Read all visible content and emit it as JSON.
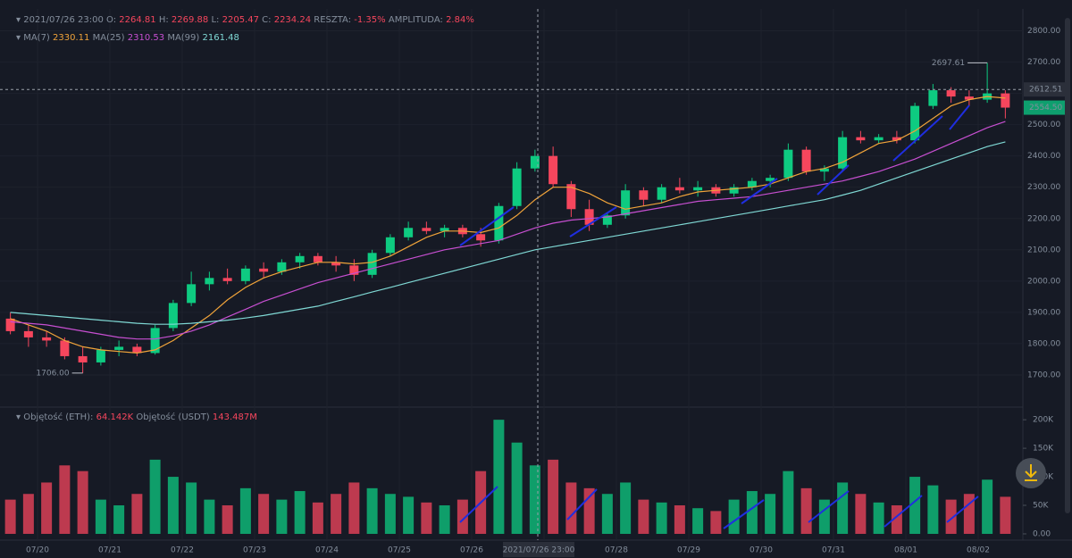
{
  "chart_data": {
    "type": "candlestick",
    "header": {
      "time": "2021/07/26 23:00",
      "items": [
        {
          "label": "O:",
          "value": "2264.81"
        },
        {
          "label": "H:",
          "value": "2269.88"
        },
        {
          "label": "L:",
          "value": "2205.47"
        },
        {
          "label": "C:",
          "value": "2234.24"
        },
        {
          "label": "RESZTA:",
          "value": "-1.35%"
        },
        {
          "label": "AMPLITUDA:",
          "value": "2.84%"
        }
      ]
    },
    "volume_header": [
      {
        "label": "Objętość (ETH):",
        "value": "64.142K"
      },
      {
        "label": "Objętość (USDT)",
        "value": "143.487M"
      }
    ],
    "categories": [
      null,
      null,
      "07/20",
      null,
      null,
      null,
      "07/21",
      null,
      null,
      null,
      "07/22",
      null,
      null,
      null,
      "07/23",
      null,
      null,
      null,
      "07/24",
      null,
      null,
      null,
      "07/25",
      null,
      null,
      null,
      "07/26",
      null,
      null,
      null,
      "07/27",
      null,
      null,
      null,
      "07/28",
      null,
      null,
      null,
      "07/29",
      null,
      null,
      null,
      "07/30",
      null,
      null,
      null,
      "07/31",
      null,
      null,
      null,
      "08/01",
      null,
      null,
      null,
      "08/02",
      null
    ],
    "open": [
      1880,
      1840,
      1820,
      1810,
      1760,
      1740,
      1780,
      1790,
      1770,
      1850,
      1930,
      1990,
      2010,
      2000,
      2040,
      2030,
      2060,
      2080,
      2060,
      2050,
      2020,
      2090,
      2140,
      2170,
      2160,
      2170,
      2150,
      2130,
      2240,
      2360,
      2400,
      2310,
      2230,
      2180,
      2210,
      2290,
      2260,
      2300,
      2290,
      2300,
      2280,
      2300,
      2320,
      2330,
      2420,
      2350,
      2360,
      2460,
      2450,
      2460,
      2450,
      2560,
      2610,
      2590,
      2580,
      2600
    ],
    "high": [
      1900,
      1860,
      1840,
      1820,
      1790,
      1790,
      1810,
      1800,
      1860,
      1940,
      2030,
      2030,
      2040,
      2050,
      2060,
      2070,
      2090,
      2090,
      2080,
      2070,
      2100,
      2150,
      2190,
      2190,
      2180,
      2180,
      2170,
      2250,
      2380,
      2420,
      2430,
      2320,
      2260,
      2220,
      2310,
      2300,
      2310,
      2330,
      2320,
      2310,
      2310,
      2330,
      2340,
      2440,
      2430,
      2370,
      2480,
      2480,
      2470,
      2480,
      2570,
      2630,
      2620,
      2610,
      2697.61,
      2610
    ],
    "low": [
      1830,
      1790,
      1790,
      1750,
      1706,
      1730,
      1760,
      1760,
      1765,
      1840,
      1920,
      1970,
      1990,
      1990,
      2010,
      2020,
      2040,
      2050,
      2030,
      2000,
      2010,
      2080,
      2130,
      2150,
      2140,
      2140,
      2110,
      2120,
      2230,
      2350,
      2300,
      2205,
      2160,
      2170,
      2200,
      2240,
      2250,
      2280,
      2270,
      2270,
      2270,
      2290,
      2300,
      2320,
      2340,
      2320,
      2350,
      2440,
      2440,
      2440,
      2440,
      2550,
      2570,
      2560,
      2570,
      2520
    ],
    "close": [
      1840,
      1820,
      1810,
      1760,
      1740,
      1780,
      1790,
      1770,
      1850,
      1930,
      1990,
      2010,
      2000,
      2040,
      2030,
      2060,
      2080,
      2060,
      2050,
      2020,
      2090,
      2140,
      2170,
      2160,
      2170,
      2150,
      2130,
      2240,
      2360,
      2400,
      2310,
      2230,
      2180,
      2210,
      2290,
      2260,
      2300,
      2290,
      2300,
      2280,
      2300,
      2320,
      2330,
      2420,
      2350,
      2360,
      2460,
      2450,
      2460,
      2450,
      2560,
      2610,
      2590,
      2580,
      2600,
      2554.5
    ],
    "volume": [
      60000,
      70000,
      90000,
      120000,
      110000,
      60000,
      50000,
      70000,
      130000,
      100000,
      90000,
      60000,
      50000,
      80000,
      70000,
      60000,
      75000,
      55000,
      70000,
      90000,
      80000,
      70000,
      65000,
      55000,
      50000,
      60000,
      110000,
      200000,
      160000,
      120000,
      130000,
      90000,
      80000,
      70000,
      90000,
      60000,
      55000,
      50000,
      45000,
      40000,
      60000,
      75000,
      70000,
      110000,
      80000,
      60000,
      90000,
      70000,
      55000,
      50000,
      100000,
      85000,
      60000,
      70000,
      95000,
      65000
    ],
    "up_color": "#0ecb81",
    "down_color": "#f6465d",
    "series": [
      {
        "name": "MA(7)",
        "legend_value": "2330.11",
        "color": "#f0a33a",
        "values": [
          1880,
          1860,
          1840,
          1810,
          1790,
          1780,
          1775,
          1770,
          1780,
          1810,
          1850,
          1890,
          1940,
          1980,
          2010,
          2030,
          2045,
          2060,
          2060,
          2055,
          2060,
          2080,
          2110,
          2140,
          2160,
          2160,
          2155,
          2170,
          2210,
          2260,
          2300,
          2300,
          2280,
          2250,
          2230,
          2240,
          2250,
          2270,
          2285,
          2290,
          2295,
          2300,
          2310,
          2330,
          2350,
          2360,
          2380,
          2410,
          2440,
          2450,
          2480,
          2520,
          2560,
          2580,
          2590,
          2585
        ]
      },
      {
        "name": "MA(25)",
        "legend_value": "2310.53",
        "color": "#c74fd1",
        "values": [
          1870,
          1865,
          1860,
          1850,
          1840,
          1830,
          1820,
          1815,
          1815,
          1825,
          1840,
          1860,
          1885,
          1910,
          1935,
          1955,
          1975,
          1995,
          2010,
          2025,
          2040,
          2055,
          2070,
          2085,
          2100,
          2110,
          2120,
          2130,
          2150,
          2170,
          2185,
          2195,
          2200,
          2205,
          2215,
          2225,
          2235,
          2245,
          2255,
          2260,
          2265,
          2270,
          2280,
          2290,
          2300,
          2310,
          2320,
          2335,
          2350,
          2370,
          2390,
          2415,
          2440,
          2465,
          2490,
          2510
        ]
      },
      {
        "name": "MA(99)",
        "legend_value": "2161.48",
        "color": "#7fd8d4",
        "values": [
          1900,
          1895,
          1890,
          1885,
          1880,
          1875,
          1870,
          1865,
          1862,
          1862,
          1865,
          1870,
          1875,
          1882,
          1890,
          1900,
          1910,
          1920,
          1935,
          1950,
          1965,
          1980,
          1995,
          2010,
          2025,
          2040,
          2055,
          2070,
          2085,
          2100,
          2110,
          2120,
          2130,
          2140,
          2150,
          2160,
          2170,
          2180,
          2190,
          2200,
          2210,
          2220,
          2230,
          2240,
          2250,
          2260,
          2275,
          2290,
          2310,
          2330,
          2350,
          2370,
          2390,
          2410,
          2430,
          2445
        ]
      }
    ],
    "ylim": [
      1600,
      2870
    ],
    "yticks": [
      {
        "value": 1700,
        "label": "1700.00"
      },
      {
        "value": 1800,
        "label": "1800.00"
      },
      {
        "value": 1900,
        "label": "1900.00"
      },
      {
        "value": 2000,
        "label": "2000.00"
      },
      {
        "value": 2100,
        "label": "2100.00"
      },
      {
        "value": 2200,
        "label": "2200.00"
      },
      {
        "value": 2300,
        "label": "2300.00"
      },
      {
        "value": 2400,
        "label": "2400.00"
      },
      {
        "value": 2500,
        "label": "2500.00"
      },
      {
        "value": 2600,
        "label": "2600.00"
      },
      {
        "value": 2700,
        "label": "2700.00"
      },
      {
        "value": 2800,
        "label": "2800.00"
      }
    ],
    "y2lim": [
      -11000,
      219000
    ],
    "y2ticks": [
      {
        "value": 0,
        "label": "0.00"
      },
      {
        "value": 50000,
        "label": "50K"
      },
      {
        "value": 100000,
        "label": "100K"
      },
      {
        "value": 150000,
        "label": "150K"
      },
      {
        "value": 200000,
        "label": "200K"
      }
    ],
    "high_marker": {
      "value": 2697.61,
      "label": "2697.61"
    },
    "low_marker": {
      "value": 1706,
      "label": "1706.00"
    },
    "crosshair": {
      "time": "2021/07/26 23:00",
      "price": {
        "value": 2612.51,
        "label": "2612.51"
      }
    },
    "last_price": {
      "value": 2554.5,
      "label": "2554.50"
    }
  }
}
